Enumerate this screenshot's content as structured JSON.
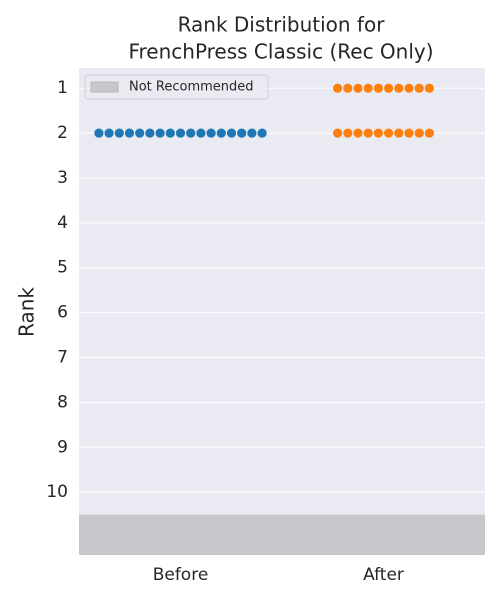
{
  "chart_data": {
    "type": "swarm",
    "title": [
      "Rank Distribution for",
      "FrenchPress Classic (Rec Only)"
    ],
    "ylabel": "Rank",
    "categories": [
      "Before",
      "After"
    ],
    "points": [
      [
        2,
        2,
        2,
        2,
        2,
        2,
        2,
        2,
        2,
        2,
        2,
        2,
        2,
        2,
        2,
        2,
        2
      ],
      [
        1,
        1,
        1,
        1,
        1,
        1,
        1,
        1,
        1,
        1,
        2,
        2,
        2,
        2,
        2,
        2,
        2,
        2,
        2,
        2
      ]
    ],
    "colors": [
      "#1f77b4",
      "#ff7f0e"
    ],
    "ylim": [
      11.4,
      0.55
    ],
    "yticks": [
      1,
      2,
      3,
      4,
      5,
      6,
      7,
      8,
      9,
      10
    ],
    "grid": true,
    "shaded_region": {
      "name": "Not Recommended",
      "span": [
        10.5,
        11.4
      ],
      "color": "#c8c8cc"
    },
    "legend": "upper left"
  }
}
